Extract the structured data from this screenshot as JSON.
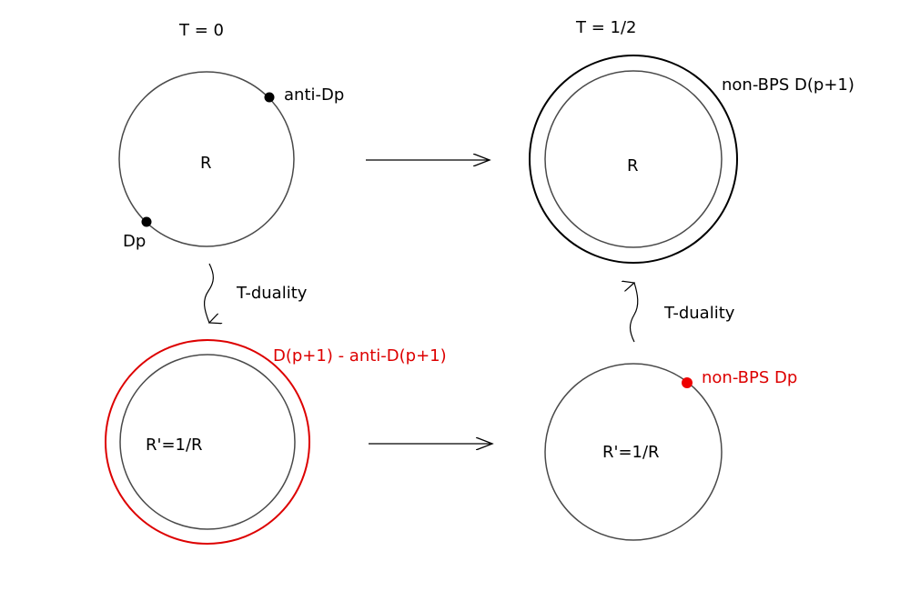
{
  "colors": {
    "ink": "#000000",
    "circle": "#4a4a4a",
    "red": "#dd0000"
  },
  "labels": {
    "t_zero": "T =  0",
    "t_half": "T =  1/2",
    "anti_dp": "anti-Dp",
    "dp": "Dp",
    "r_top_left": "R",
    "r_top_right": "R",
    "non_bps_dp1": "non-BPS D(p+1)",
    "t_duality_left": "T-duality",
    "t_duality_right": "T-duality",
    "d_anti_d": "D(p+1) - anti-D(p+1)",
    "r_prime_left": "R'=1/R",
    "r_prime_right": "R'=1/R",
    "non_bps_dp": "non-BPS Dp"
  }
}
